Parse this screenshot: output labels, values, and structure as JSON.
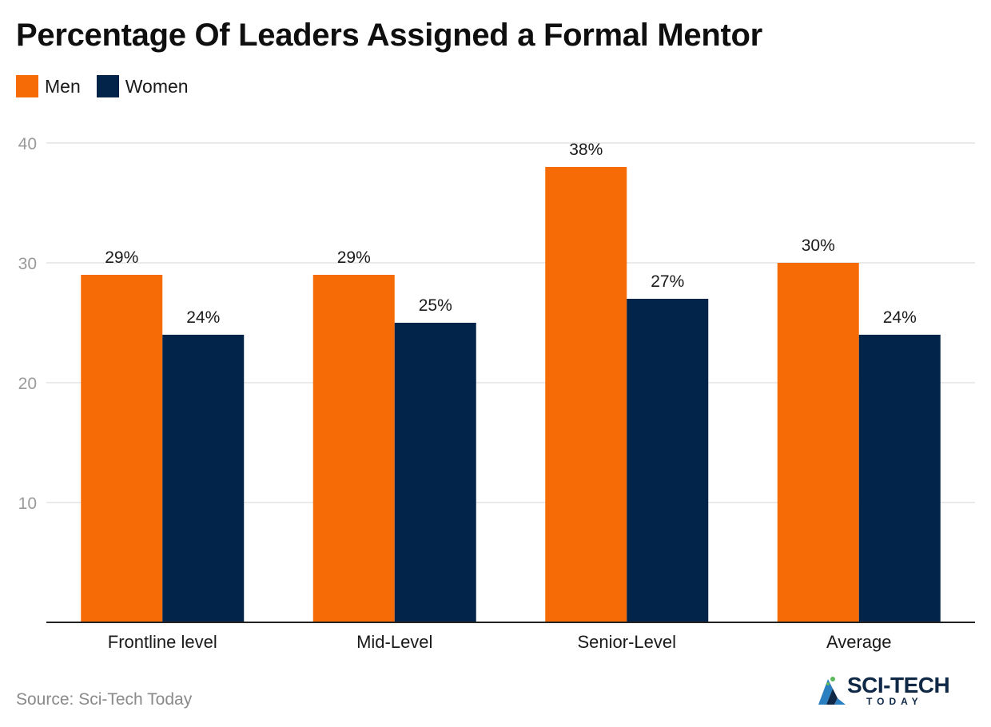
{
  "title": "Percentage Of Leaders Assigned a Formal Mentor",
  "legend": [
    {
      "label": "Men",
      "color": "#f76b07"
    },
    {
      "label": "Women",
      "color": "#02234a"
    }
  ],
  "source": "Source: Sci-Tech Today",
  "logo": {
    "main": "SCI-TECH",
    "sub": "TODAY"
  },
  "chart_data": {
    "type": "bar",
    "title": "Percentage Of Leaders Assigned a Formal Mentor",
    "xlabel": "",
    "ylabel": "",
    "categories": [
      "Frontline level",
      "Mid-Level",
      "Senior-Level",
      "Average"
    ],
    "series": [
      {
        "name": "Men",
        "color": "#f76b07",
        "values": [
          29,
          29,
          38,
          30
        ],
        "labels": [
          "29%",
          "29%",
          "38%",
          "30%"
        ]
      },
      {
        "name": "Women",
        "color": "#02234a",
        "values": [
          24,
          25,
          27,
          24
        ],
        "labels": [
          "24%",
          "25%",
          "27%",
          "24%"
        ]
      }
    ],
    "ylim": [
      0,
      40
    ],
    "yticks": [
      10,
      20,
      30,
      40
    ],
    "grid": true,
    "legend_position": "top-left"
  }
}
